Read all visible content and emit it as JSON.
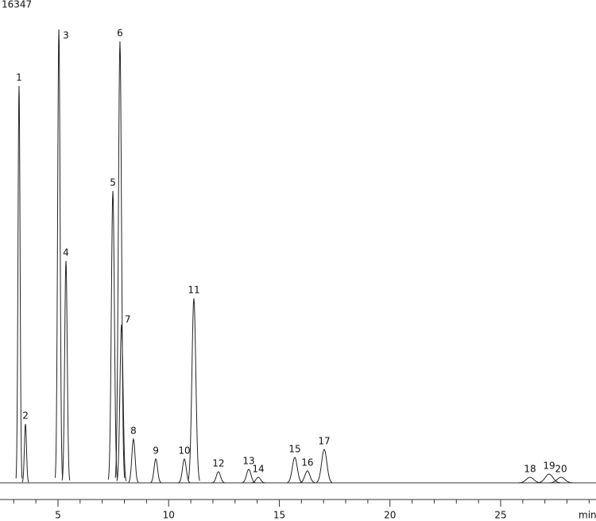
{
  "chart_data": {
    "type": "chromatogram",
    "ylabel_top": "16347",
    "x_unit": "min",
    "labels": [
      "1",
      "2",
      "3",
      "4",
      "5",
      "6",
      "7",
      "8",
      "9",
      "10",
      "11",
      "12",
      "13",
      "14",
      "15",
      "16",
      "17",
      "18",
      "19",
      "20"
    ],
    "x": [
      3.24,
      3.53,
      5.04,
      5.36,
      7.48,
      7.8,
      7.87,
      8.41,
      9.42,
      10.71,
      11.14,
      12.25,
      13.62,
      14.05,
      15.7,
      16.27,
      17.03,
      26.33,
      27.19,
      27.73
    ],
    "values": [
      14311,
      2122,
      16347,
      8001,
      10525,
      15917,
      5707,
      1577,
      860,
      860,
      6654,
      402,
      488,
      200,
      918,
      430,
      1205,
      200,
      315,
      200
    ],
    "color": "#222222",
    "xlim": [
      2.38,
      29.31
    ],
    "ylim": [
      0,
      16347
    ],
    "xticks": [
      5,
      10,
      15,
      20,
      25
    ],
    "xminorticks": [
      3,
      4,
      6,
      7,
      8,
      9,
      11,
      12,
      13,
      14,
      16,
      17,
      18,
      19,
      21,
      22,
      23,
      24,
      26,
      27,
      28,
      29
    ]
  }
}
